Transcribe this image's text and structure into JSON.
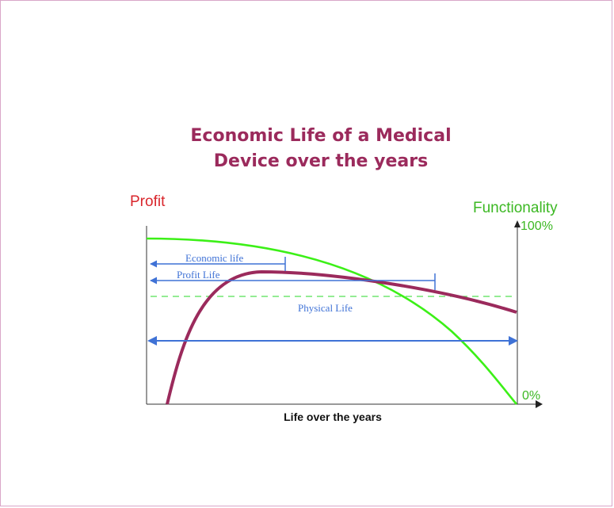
{
  "chart_data": {
    "type": "line",
    "title_lines": [
      "Economic Life of a Medical",
      "Device over the years"
    ],
    "xlabel": "Life over the years",
    "left_axis_label": "Profit",
    "right_axis_label": "Functionality",
    "right_ticks": [
      "100%",
      "0%"
    ],
    "grid": false,
    "colors": {
      "profit": "#9b2a5c",
      "functionality": "#3cf017",
      "annotation": "#3f72d6",
      "functionality_threshold": "#55e055",
      "left_title": "#d9262c",
      "right_title": "#3cb823",
      "title": "#9b2a5c"
    },
    "annotations": {
      "economic_life": "Economic life",
      "profit_life": "Profit Life",
      "physical_life": "Physical Life"
    }
  }
}
